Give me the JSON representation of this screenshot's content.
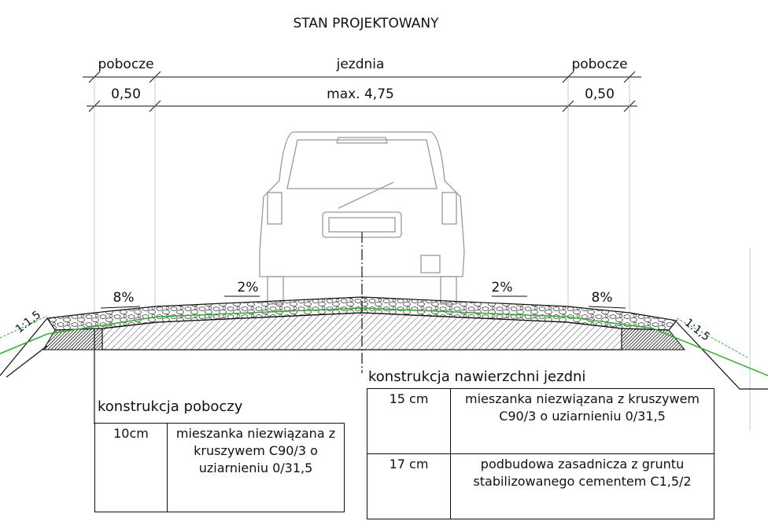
{
  "title": "STAN PROJEKTOWANY",
  "dimensions": {
    "labels": [
      "pobocze",
      "jezdnia",
      "pobocze"
    ],
    "widths": [
      "0,50",
      "max. 4,75",
      "0,50"
    ]
  },
  "slopes": [
    "8%",
    "2%",
    "2%",
    "8%"
  ],
  "embankment": [
    "1:1,5",
    "1:1,5"
  ],
  "shoulder_table": {
    "title": "konstrukcja poboczy",
    "rows": [
      [
        "10cm",
        "mieszanka niezwiązana z kruszywem C90/3 o uziarnieniu 0/31,5"
      ]
    ]
  },
  "roadway_table": {
    "title": "konstrukcja nawierzchni jezdni",
    "rows": [
      [
        "15 cm",
        "mieszanka niezwiązana z kruszywem C90/3 o uziarnieniu 0/31,5"
      ],
      [
        "17 cm",
        "podbudowa zasadnicza z gruntu stabilizowanego cementem C1,5/2"
      ]
    ]
  }
}
